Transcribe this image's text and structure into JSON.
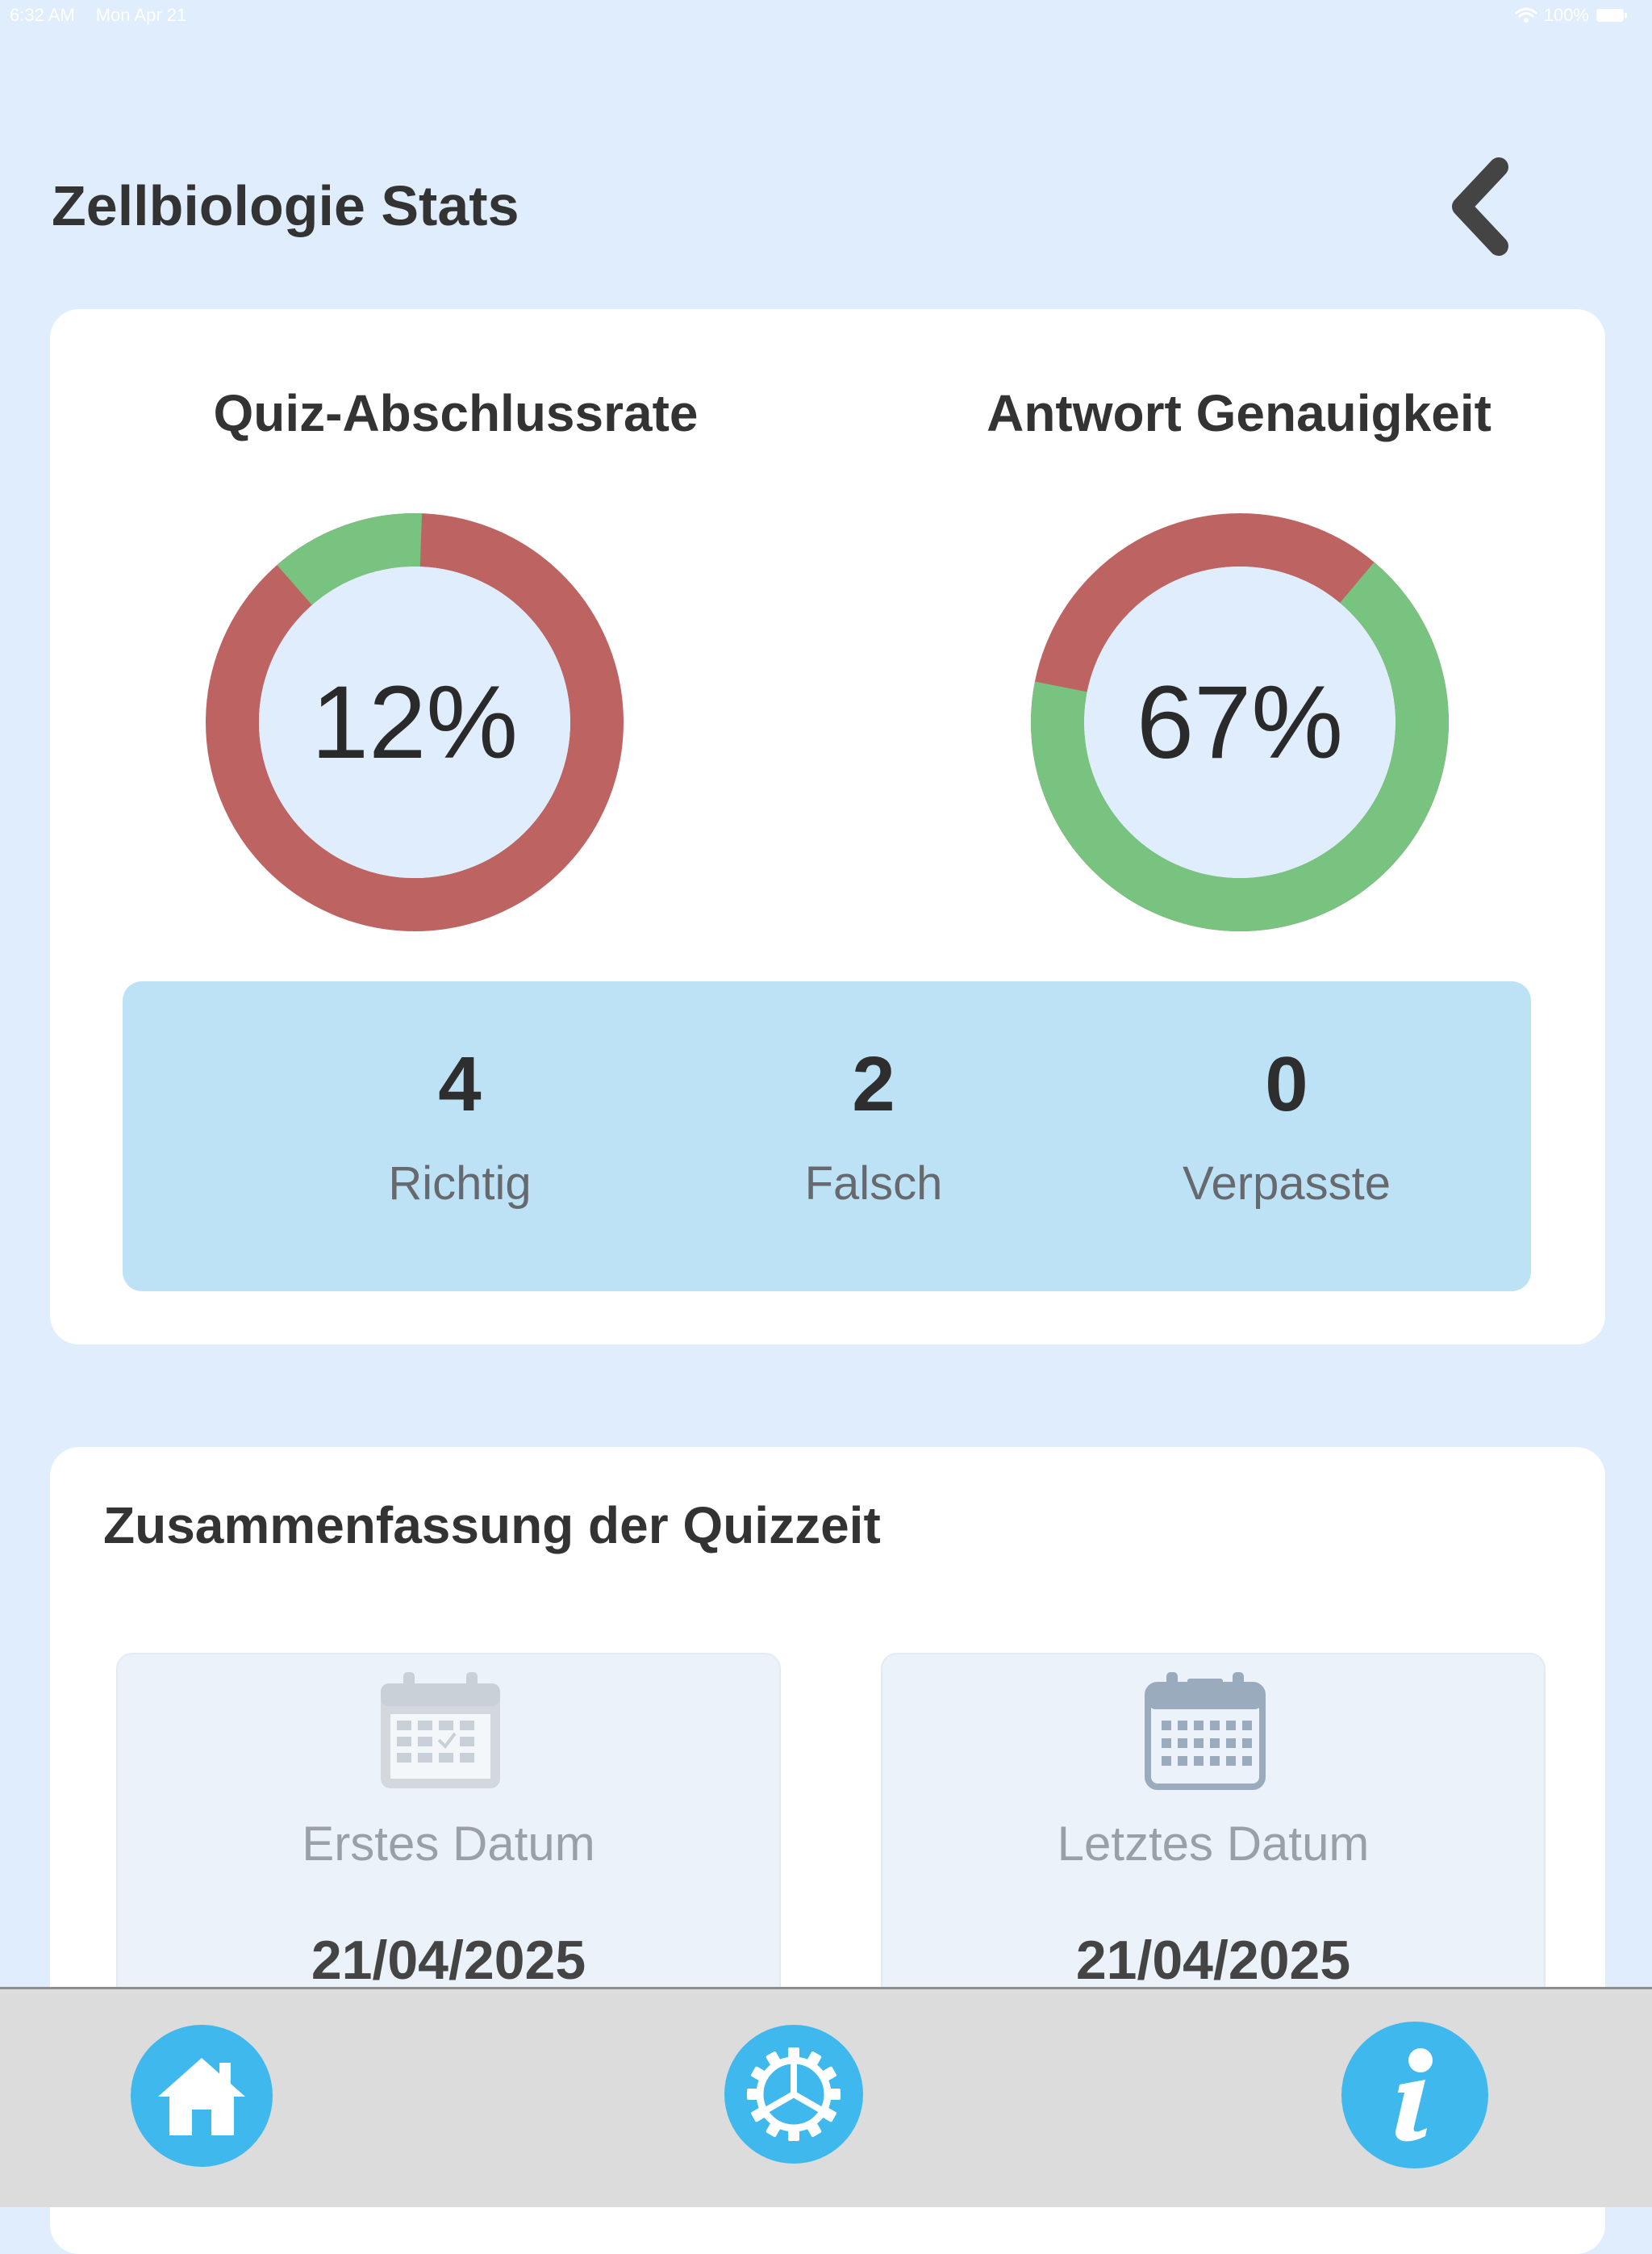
{
  "status_bar": {
    "time": "6:32 AM",
    "date": "Mon Apr 21",
    "battery": "100%"
  },
  "header": {
    "title": "Zellbiologie Stats"
  },
  "stats_card": {
    "completion": {
      "title": "Quiz-Abschlussrate",
      "percent_label": "12%",
      "fraction": 0.12,
      "filled_color": "#77c37f",
      "remaining_color": "#bd6462"
    },
    "accuracy": {
      "title": "Antwort Genauigkeit",
      "percent_label": "67%",
      "fraction": 0.67,
      "filled_color": "#77c37f",
      "remaining_color": "#bd6462"
    },
    "counts": [
      {
        "value": "4",
        "label": "Richtig"
      },
      {
        "value": "2",
        "label": "Falsch"
      },
      {
        "value": "0",
        "label": "Verpasste"
      }
    ]
  },
  "time_summary": {
    "title": "Zusammenfassung der Quizzeit",
    "first_date": {
      "label": "Erstes Datum",
      "value": "21/04/2025",
      "icon": "calendar-check-icon"
    },
    "last_date": {
      "label": "Letztes Datum",
      "value": "21/04/2025",
      "icon": "calendar-icon"
    }
  },
  "tab_bar": {
    "items": [
      {
        "icon": "home-icon"
      },
      {
        "icon": "settings-icon"
      },
      {
        "icon": "info-icon"
      }
    ],
    "accent": "#3fb8ee"
  }
}
